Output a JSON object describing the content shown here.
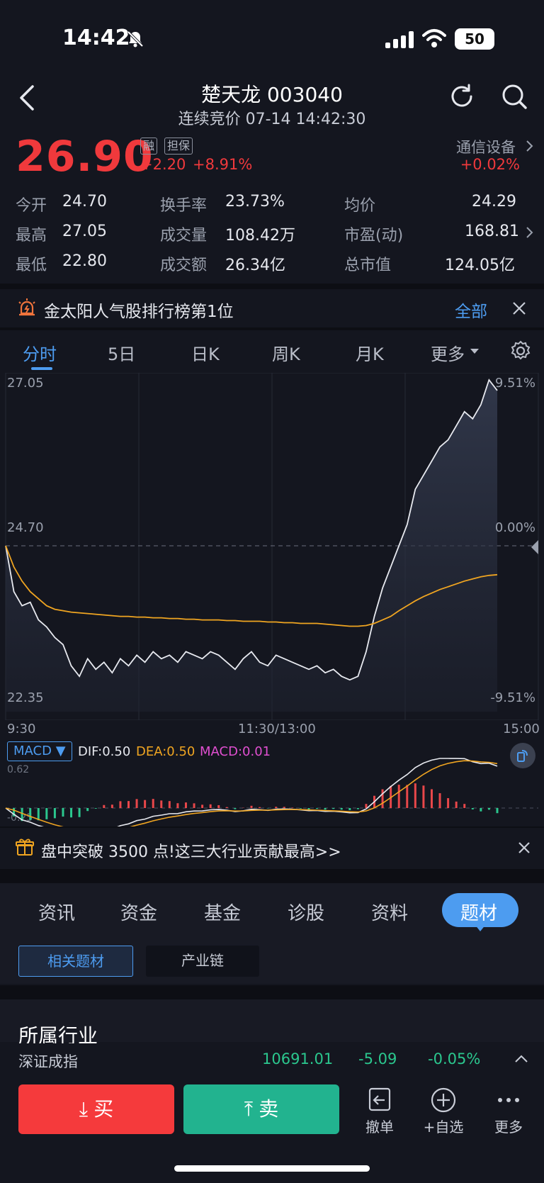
{
  "status_bar": {
    "time": "14:42",
    "battery": "50"
  },
  "header": {
    "title": "楚天龙 003040",
    "subtitle": "连续竞价 07-14 14:42:30"
  },
  "quote": {
    "price": "26.90",
    "tag_margin": "融",
    "tag_collateral": "担保",
    "change": "+2.20",
    "change_pct": "+8.91%",
    "industry": "通信设备",
    "industry_chg": "+0.02%"
  },
  "stats": {
    "open_label": "今开",
    "open": "24.70",
    "turnover_rate_label": "换手率",
    "turnover_rate": "23.73%",
    "avg_label": "均价",
    "avg": "24.29",
    "high_label": "最高",
    "high": "27.05",
    "volume_label": "成交量",
    "volume": "108.42万",
    "pe_label": "市盈(动)",
    "pe": "168.81",
    "low_label": "最低",
    "low": "22.80",
    "amount_label": "成交额",
    "amount": "26.34亿",
    "mcap_label": "总市值",
    "mcap": "124.05亿"
  },
  "banner": {
    "text": "金太阳人气股排行榜第1位",
    "action": "全部"
  },
  "chart_tabs": [
    "分时",
    "5日",
    "日K",
    "周K",
    "月K",
    "更多"
  ],
  "chart_data": {
    "type": "line",
    "y_left_ticks": [
      "27.05",
      "24.70",
      "22.35"
    ],
    "y_right_ticks": [
      "9.51%",
      "0.00%",
      "-9.51%"
    ],
    "x_ticks": [
      "9:30",
      "11:30/13:00",
      "15:00"
    ],
    "ylim": [
      22.35,
      27.05
    ],
    "series": [
      {
        "values": [
          24.7,
          24.05,
          23.85,
          23.9,
          23.65,
          23.55,
          23.4,
          23.3,
          23.0,
          22.85,
          23.1,
          22.95,
          23.05,
          22.9,
          23.1,
          23.0,
          23.15,
          23.05,
          23.2,
          23.1,
          23.15,
          23.05,
          23.2,
          23.15,
          23.1,
          23.2,
          23.15,
          23.05,
          22.95,
          23.1,
          23.2,
          23.05,
          23.0,
          23.15,
          23.1,
          23.05,
          23.0,
          22.95,
          23.0,
          22.9,
          22.95,
          22.85,
          22.8,
          22.85,
          23.2,
          23.7,
          24.1,
          24.4,
          24.7,
          25.0,
          25.5,
          25.7,
          25.9,
          26.1,
          26.2,
          26.4,
          26.6,
          26.5,
          26.7,
          27.05,
          26.9
        ],
        "color": "#e8eaf0"
      },
      {
        "values": [
          24.7,
          24.4,
          24.2,
          24.05,
          23.95,
          23.85,
          23.8,
          23.78,
          23.76,
          23.75,
          23.74,
          23.73,
          23.72,
          23.71,
          23.7,
          23.7,
          23.69,
          23.69,
          23.68,
          23.68,
          23.67,
          23.67,
          23.66,
          23.66,
          23.65,
          23.65,
          23.65,
          23.64,
          23.64,
          23.63,
          23.63,
          23.63,
          23.62,
          23.62,
          23.61,
          23.61,
          23.6,
          23.6,
          23.6,
          23.59,
          23.58,
          23.57,
          23.56,
          23.56,
          23.57,
          23.6,
          23.65,
          23.7,
          23.78,
          23.85,
          23.92,
          23.98,
          24.03,
          24.08,
          24.12,
          24.16,
          24.2,
          24.23,
          24.26,
          24.28,
          24.29
        ],
        "color": "#f0a521"
      }
    ]
  },
  "macd": {
    "indicator": "MACD",
    "dif": "DIF:0.50",
    "dea": "DEA:0.50",
    "macd": "MACD:0.01",
    "top_tick": "0.62",
    "bottom_tick": "-0.25"
  },
  "promo": {
    "text": "盘中突破 3500 点!这三大行业贡献最高>>"
  },
  "info_tabs": [
    "资讯",
    "资金",
    "基金",
    "诊股",
    "资料",
    "题材"
  ],
  "theme_chips": [
    "相关题材",
    "产业链"
  ],
  "section_title": "所属行业",
  "index_row": {
    "name": "深证成指",
    "value": "10691.01",
    "change": "-5.09",
    "change_pct": "-0.05%"
  },
  "trade_bar": {
    "buy": "买",
    "sell": "卖",
    "cancel": "撤单",
    "watchlist": "+自选",
    "more": "更多"
  }
}
